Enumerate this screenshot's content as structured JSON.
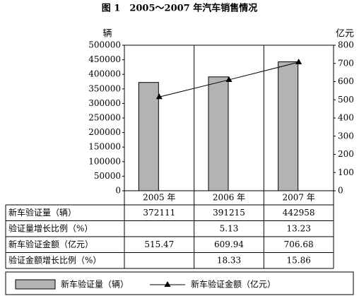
{
  "chart_data": {
    "type": "bar",
    "title": "图 1　2005～2007 年汽车销售情况",
    "y_label": "辆",
    "y2_label": "亿元",
    "categories": [
      "2005 年",
      "2006 年",
      "2007 年"
    ],
    "series": [
      {
        "name": "新车验证量（辆）",
        "type": "bar",
        "color": "#b3b3b3",
        "values": [
          372111,
          391215,
          442958
        ]
      },
      {
        "name": "新车验证金额（亿元）",
        "type": "line",
        "axis": "y2",
        "color": "#000000",
        "values": [
          515.47,
          609.94,
          706.68
        ]
      }
    ],
    "extra_rows": [
      {
        "name": "验证量增长比例（%）",
        "values": [
          null,
          5.13,
          13.23
        ]
      },
      {
        "name": "验证金额增长比例（%）",
        "values": [
          null,
          18.33,
          15.86
        ]
      }
    ],
    "ylim": [
      0,
      500000
    ],
    "yticks": [
      0,
      50000,
      100000,
      150000,
      200000,
      250000,
      300000,
      350000,
      400000,
      450000,
      500000
    ],
    "y2lim": [
      0,
      800
    ],
    "y2ticks": [
      0,
      100,
      200,
      300,
      400,
      500,
      600,
      700,
      800
    ]
  }
}
